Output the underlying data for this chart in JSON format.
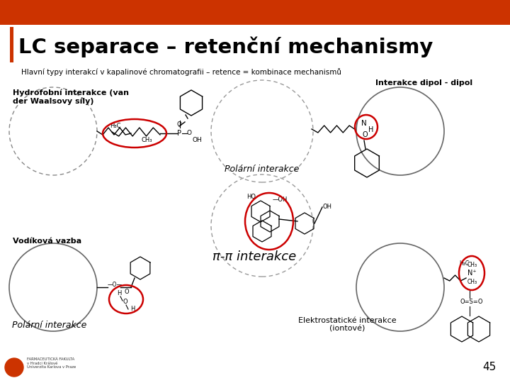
{
  "title": "LC separace – retenční mechanismy",
  "subtitle": "Hlavní typy interakcí v kapalinové chromatografii – retence = kombinace mechanismů",
  "header_bar_color": "#CC3300",
  "left_bar_color": "#CC3300",
  "bg_color": "#FFFFFF",
  "page_number": "45",
  "labels": {
    "hydrofobni": "Hydrofobní interakce (van\nder Waalsovy síly)",
    "polarni_top": "Polární interakce",
    "interakce_dipol": "Interakce dipol - dipol",
    "pi_pi": "π-π interakce",
    "vodikova": "Vodíková vazba",
    "elektrostaticke": "Elektrostatické interakce\n(iontové)",
    "polarni_bot": "Polární interakce"
  }
}
